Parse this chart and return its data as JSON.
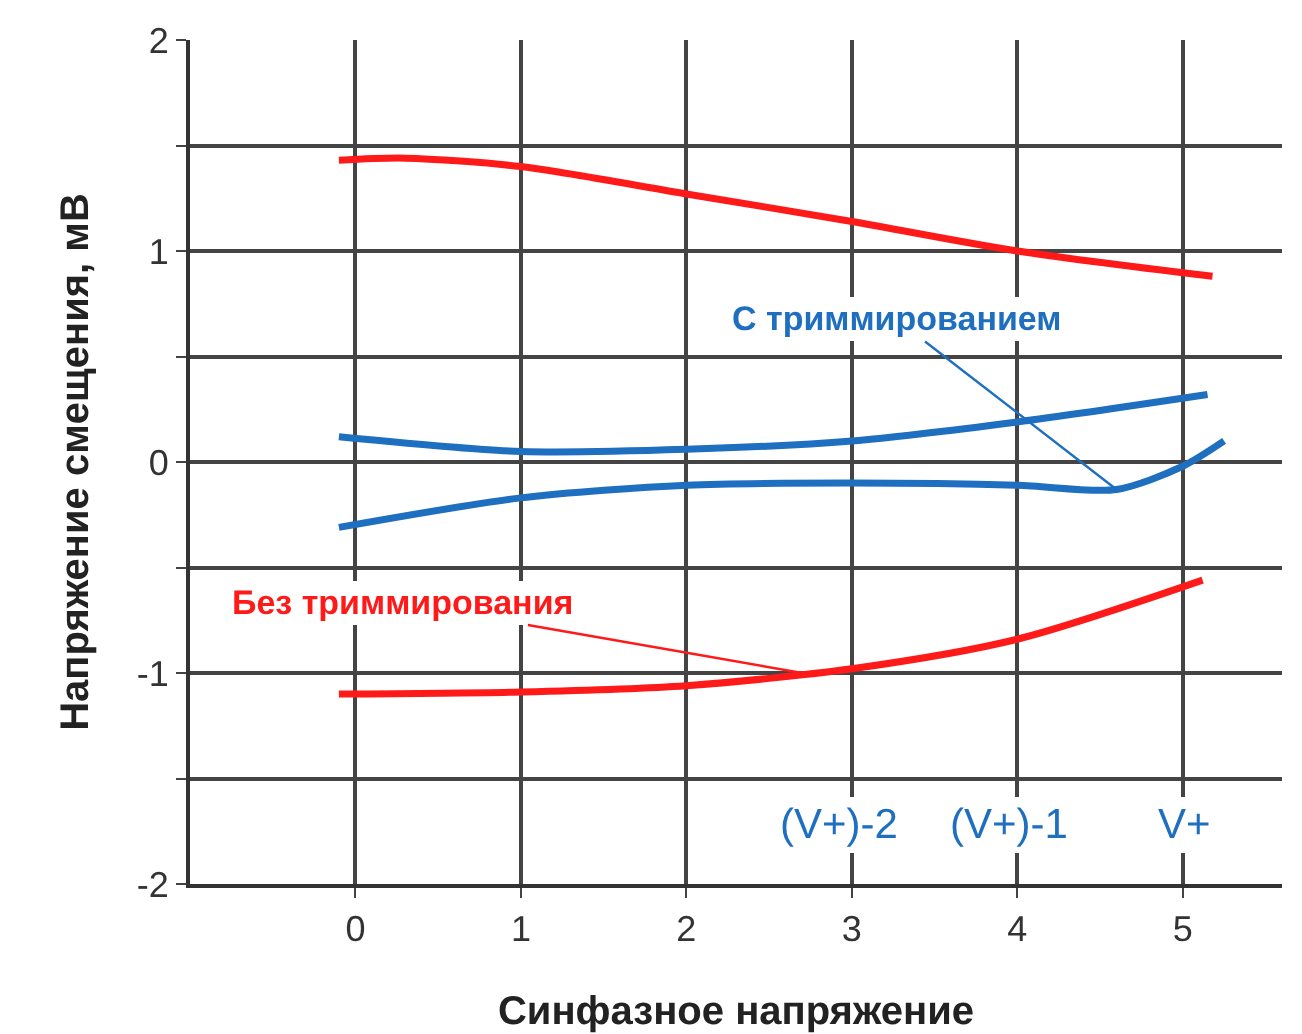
{
  "chart_data": {
    "type": "line",
    "xlabel": "Синфазное напряжение",
    "ylabel": "Напряжение смещения, мВ",
    "xlim": [
      -1,
      5.6
    ],
    "xticks": [
      0,
      1,
      2,
      3,
      4,
      5
    ],
    "ylim": [
      -2,
      2
    ],
    "yticks": [
      -2,
      {
        "value": -1.5,
        "label": null
      },
      -1,
      {
        "value": -0.5,
        "label": null
      },
      0,
      {
        "value": 0.5,
        "label": null
      },
      1,
      {
        "value": 1.5,
        "label": null
      },
      2
    ],
    "grid": true,
    "marker": "none",
    "line_style": "solid",
    "series": [
      {
        "color": "#ff1a1a",
        "x": [
          -0.1,
          0.3,
          1,
          2,
          3,
          4,
          5.18
        ],
        "values": [
          1.43,
          1.44,
          1.4,
          1.27,
          1.14,
          1.0,
          0.88
        ]
      },
      {
        "color": "#ff1a1a",
        "x": [
          -0.1,
          1,
          2,
          3,
          4,
          5.12
        ],
        "values": [
          -1.1,
          -1.09,
          -1.06,
          -0.98,
          -0.84,
          -0.56
        ]
      },
      {
        "color": "#1f6fc0",
        "x": [
          -0.1,
          1,
          2,
          3,
          4,
          5.15
        ],
        "values": [
          0.12,
          0.05,
          0.06,
          0.1,
          0.19,
          0.32
        ]
      },
      {
        "color": "#1f6fc0",
        "x": [
          -0.1,
          1,
          2,
          3,
          4,
          4.6,
          5,
          5.25
        ],
        "values": [
          -0.31,
          -0.17,
          -0.11,
          -0.1,
          -0.11,
          -0.13,
          -0.02,
          0.1
        ]
      }
    ],
    "annotations": [
      {
        "text": "С триммированием",
        "x": 4.6,
        "y": -0.13
      },
      {
        "text": "Без триммирования",
        "x": 2.7,
        "y": -1.0
      },
      "(V+)-2",
      "(V+)-1",
      "V+"
    ]
  }
}
